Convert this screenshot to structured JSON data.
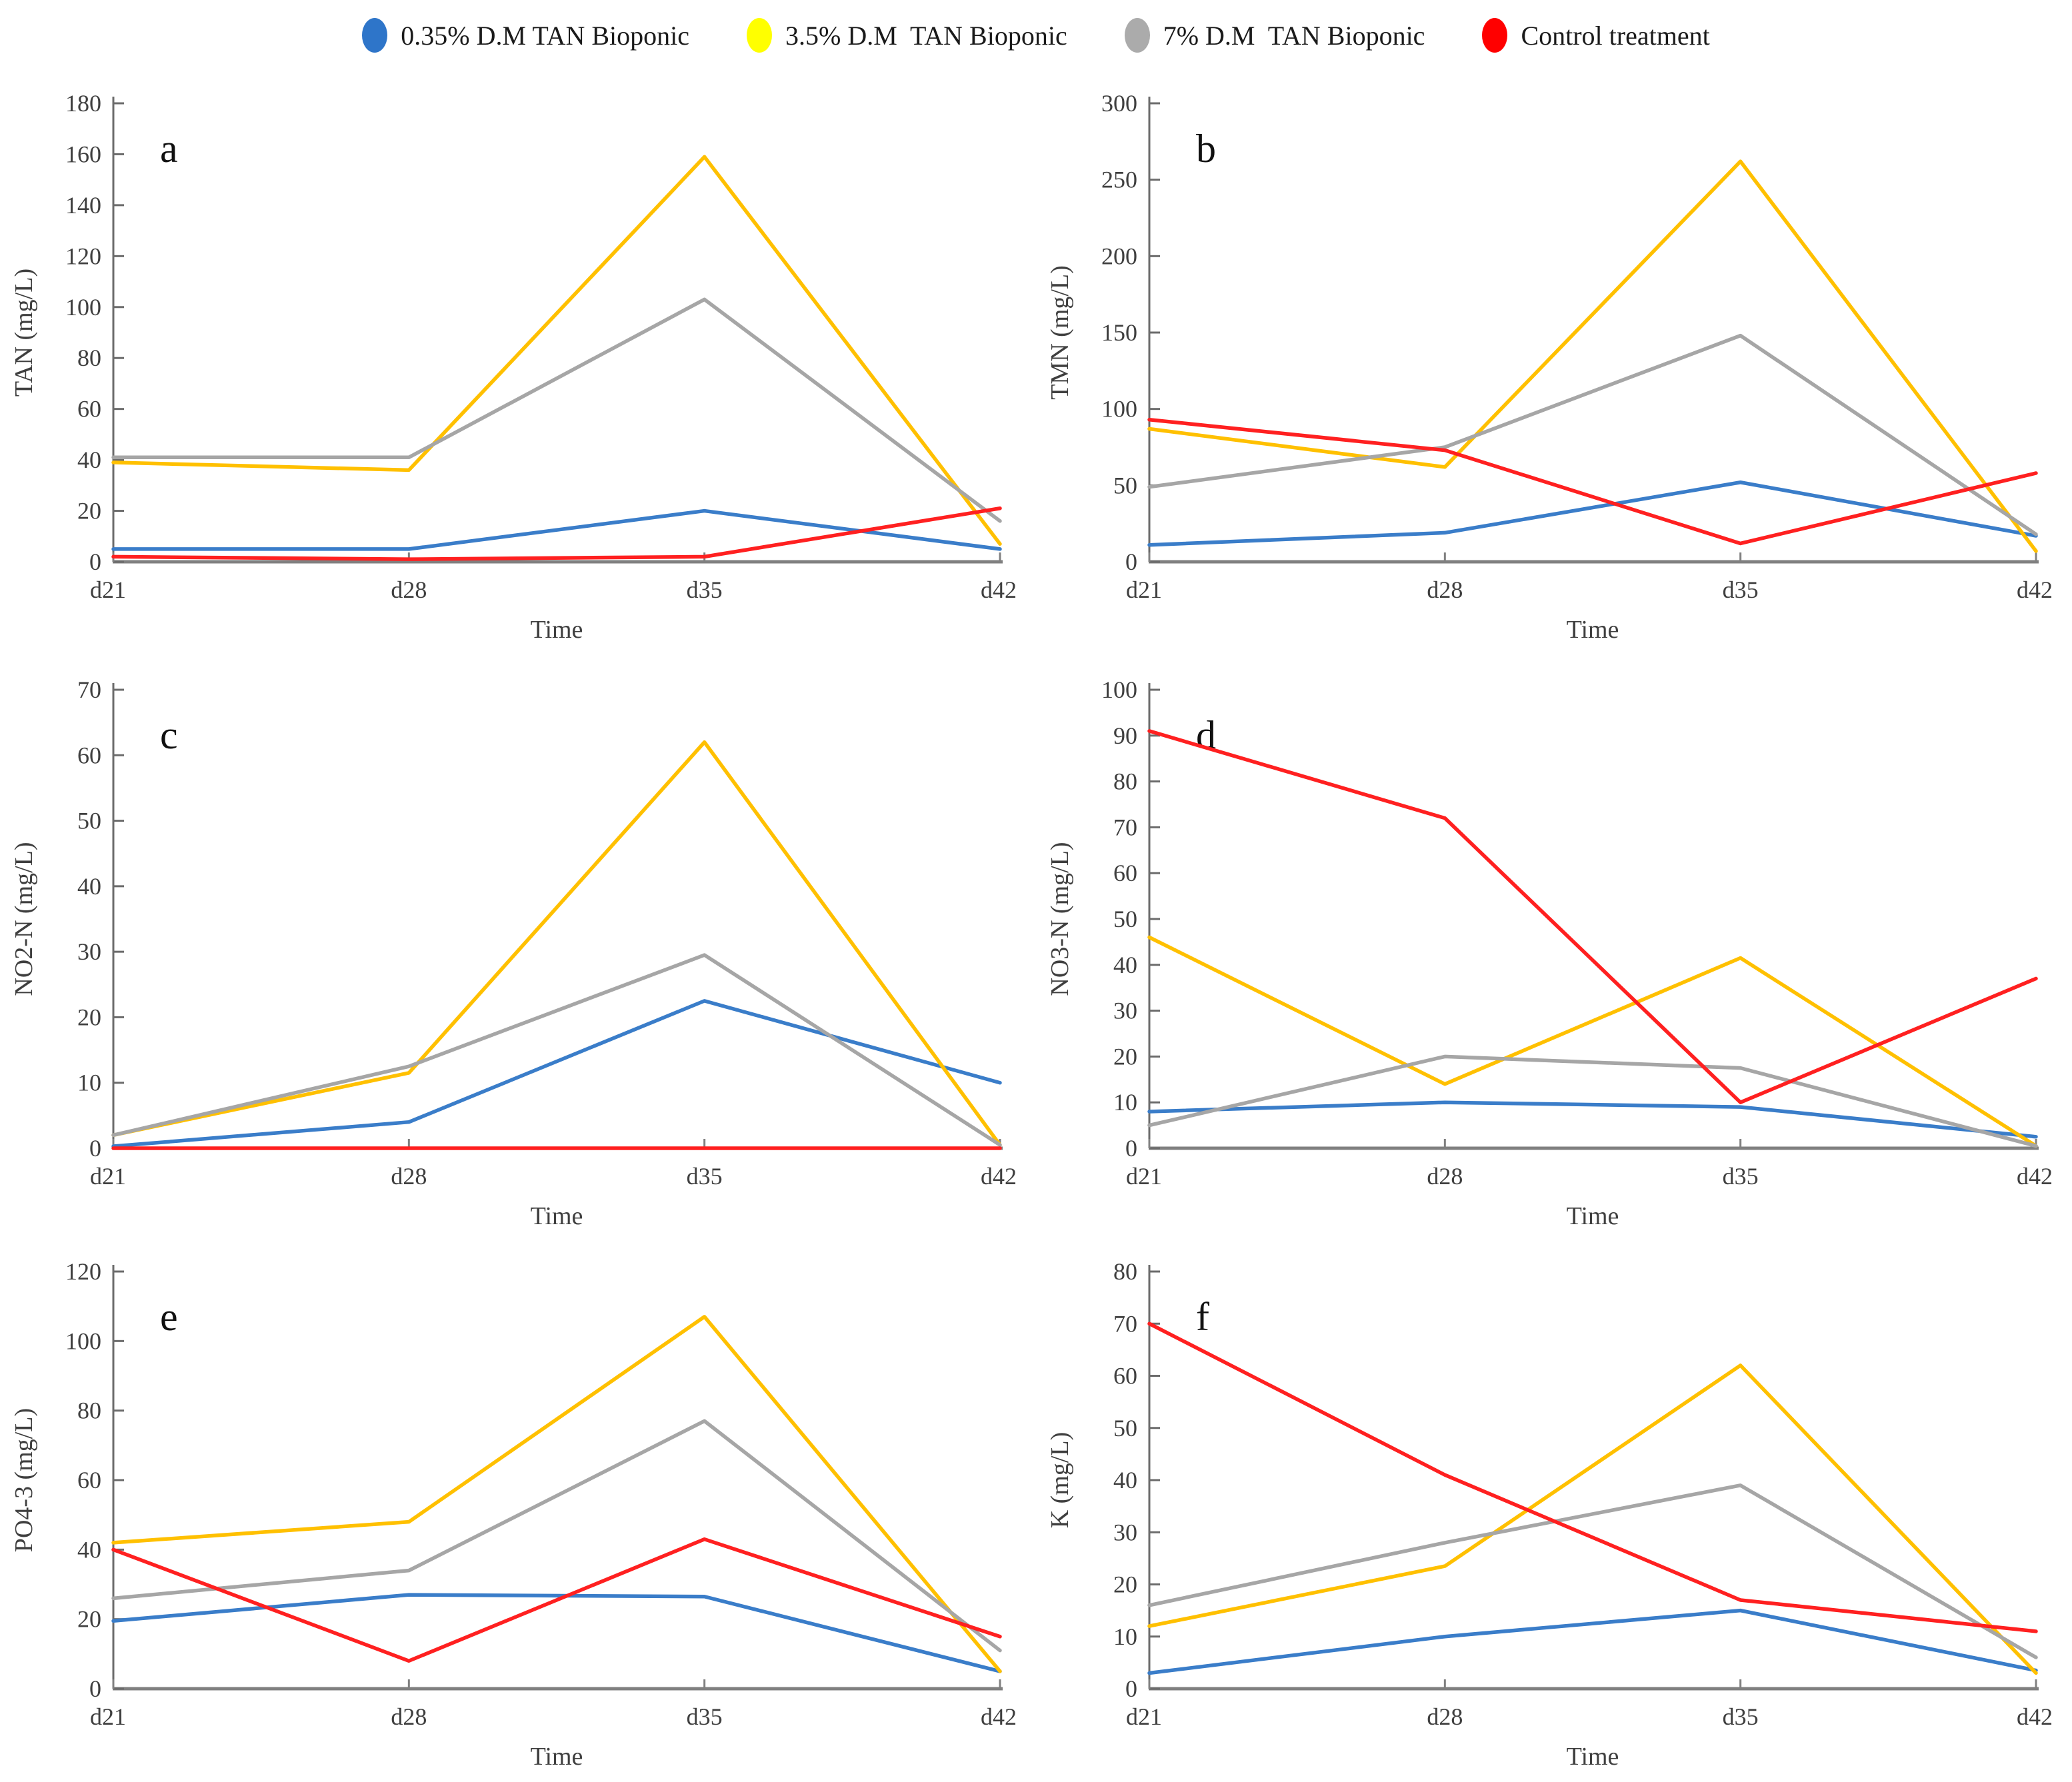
{
  "legend": [
    {
      "label": "0.35% D.M TAN Bioponic",
      "marker_color": "#2E75C9",
      "line_color": "#3A7DC9"
    },
    {
      "label": "3.5% D.M  TAN Bioponic",
      "marker_color": "#FFFF00",
      "line_color": "#FFC000"
    },
    {
      "label": "7% D.M  TAN Bioponic",
      "marker_color": "#ABABAB",
      "line_color": "#A6A6A6"
    },
    {
      "label": "Control treatment",
      "marker_color": "#FF0000",
      "line_color": "#FF2020"
    }
  ],
  "xlabel": "Time",
  "categories": [
    "d21",
    "d28",
    "d35",
    "d42"
  ],
  "chart_data": [
    {
      "type": "line",
      "label": "a",
      "ylabel": "TAN (mg/L)",
      "xlabel": "Time",
      "categories": [
        "d21",
        "d28",
        "d35",
        "d42"
      ],
      "ylim": [
        0,
        180
      ],
      "yticks": [
        0,
        20,
        40,
        60,
        80,
        100,
        120,
        140,
        160,
        180
      ],
      "grid": false,
      "legend_position": "top",
      "series": [
        {
          "name": "0.35% D.M TAN Bioponic",
          "values": [
            5,
            5,
            20,
            5
          ]
        },
        {
          "name": "3.5% D.M TAN Bioponic",
          "values": [
            39,
            36,
            159,
            7
          ]
        },
        {
          "name": "7% D.M TAN Bioponic",
          "values": [
            41,
            41,
            103,
            16
          ]
        },
        {
          "name": "Control treatment",
          "values": [
            2,
            1,
            2,
            21
          ]
        }
      ]
    },
    {
      "type": "line",
      "label": "b",
      "ylabel": "TMN (mg/L)",
      "xlabel": "Time",
      "categories": [
        "d21",
        "d28",
        "d35",
        "d42"
      ],
      "ylim": [
        0,
        300
      ],
      "yticks": [
        0,
        50,
        100,
        150,
        200,
        250,
        300
      ],
      "grid": false,
      "legend_position": "top",
      "series": [
        {
          "name": "0.35% D.M TAN Bioponic",
          "values": [
            11,
            19,
            52,
            17
          ]
        },
        {
          "name": "3.5% D.M TAN Bioponic",
          "values": [
            87,
            62,
            262,
            7
          ]
        },
        {
          "name": "7% D.M TAN Bioponic",
          "values": [
            49,
            75,
            148,
            18
          ]
        },
        {
          "name": "Control treatment",
          "values": [
            93,
            73,
            12,
            58
          ]
        }
      ]
    },
    {
      "type": "line",
      "label": "c",
      "ylabel": "NO2-N (mg/L)",
      "xlabel": "Time",
      "categories": [
        "d21",
        "d28",
        "d35",
        "d42"
      ],
      "ylim": [
        0,
        70
      ],
      "yticks": [
        0,
        10,
        20,
        30,
        40,
        50,
        60,
        70
      ],
      "grid": false,
      "legend_position": "top",
      "series": [
        {
          "name": "0.35% D.M TAN Bioponic",
          "values": [
            0.3,
            4,
            22.5,
            10
          ]
        },
        {
          "name": "3.5% D.M TAN Bioponic",
          "values": [
            2,
            11.5,
            62,
            0.5
          ]
        },
        {
          "name": "7% D.M TAN Bioponic",
          "values": [
            2,
            12.5,
            29.5,
            0.5
          ]
        },
        {
          "name": "Control treatment",
          "values": [
            0,
            0,
            0,
            0
          ]
        }
      ]
    },
    {
      "type": "line",
      "label": "d",
      "ylabel": "NO3-N (mg/L)",
      "xlabel": "Time",
      "categories": [
        "d21",
        "d28",
        "d35",
        "d42"
      ],
      "ylim": [
        0,
        100
      ],
      "yticks": [
        0,
        10,
        20,
        30,
        40,
        50,
        60,
        70,
        80,
        90,
        100
      ],
      "grid": false,
      "legend_position": "top",
      "series": [
        {
          "name": "0.35% D.M TAN Bioponic",
          "values": [
            8,
            10,
            9,
            2.5
          ]
        },
        {
          "name": "3.5% D.M TAN Bioponic",
          "values": [
            46,
            14,
            41.5,
            0.5
          ]
        },
        {
          "name": "7% D.M TAN Bioponic",
          "values": [
            5,
            20,
            17.5,
            0.5
          ]
        },
        {
          "name": "Control treatment",
          "values": [
            91,
            72,
            10,
            37
          ]
        }
      ]
    },
    {
      "type": "line",
      "label": "e",
      "ylabel": "PO4-3 (mg/L)",
      "xlabel": "Time",
      "categories": [
        "d21",
        "d28",
        "d35",
        "d42"
      ],
      "ylim": [
        0,
        120
      ],
      "yticks": [
        0,
        20,
        40,
        60,
        80,
        100,
        120
      ],
      "grid": false,
      "legend_position": "top",
      "series": [
        {
          "name": "0.35% D.M TAN Bioponic",
          "values": [
            19.5,
            27,
            26.5,
            5
          ]
        },
        {
          "name": "3.5% D.M TAN Bioponic",
          "values": [
            42,
            48,
            107,
            5
          ]
        },
        {
          "name": "7% D.M TAN Bioponic",
          "values": [
            26,
            34,
            77,
            11
          ]
        },
        {
          "name": "Control treatment",
          "values": [
            40,
            8,
            43,
            15
          ]
        }
      ]
    },
    {
      "type": "line",
      "label": "f",
      "ylabel": "K (mg/L)",
      "xlabel": "Time",
      "categories": [
        "d21",
        "d28",
        "d35",
        "d42"
      ],
      "ylim": [
        0,
        80
      ],
      "yticks": [
        0,
        10,
        20,
        30,
        40,
        50,
        60,
        70,
        80
      ],
      "grid": false,
      "legend_position": "top",
      "series": [
        {
          "name": "0.35% D.M TAN Bioponic",
          "values": [
            3,
            10,
            15,
            3.5
          ]
        },
        {
          "name": "3.5% D.M TAN Bioponic",
          "values": [
            12,
            23.5,
            62,
            3
          ]
        },
        {
          "name": "7% D.M TAN Bioponic",
          "values": [
            16,
            28,
            39,
            6
          ]
        },
        {
          "name": "Control treatment",
          "values": [
            70,
            41,
            17,
            11
          ]
        }
      ]
    }
  ]
}
